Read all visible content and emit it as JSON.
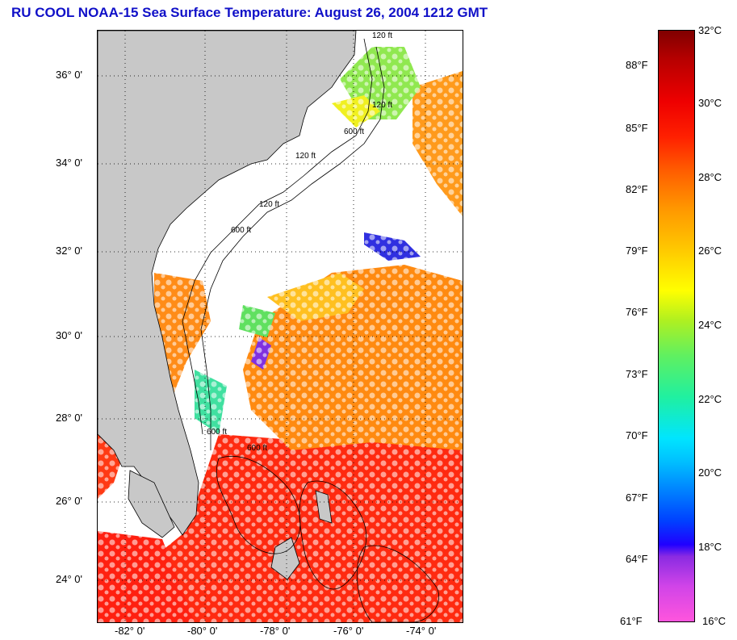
{
  "title": "RU COOL  NOAA-15  Sea Surface Temperature:  August 26, 2004 1212 GMT",
  "map": {
    "lat_labels": [
      "36° 0'",
      "34° 0'",
      "32° 0'",
      "30° 0'",
      "28° 0'",
      "26° 0'",
      "24° 0'"
    ],
    "lon_labels": [
      "-82° 0'",
      "-80° 0'",
      "-78° 0'",
      "-76° 0'",
      "-74° 0'"
    ],
    "isobath_labels": [
      "120 ft",
      "120 ft",
      "600 ft",
      "120 ft",
      "120 ft",
      "600 ft",
      "600 ft",
      "600 ft"
    ],
    "colors": {
      "land": "#c8c8c8",
      "cloud": "#ffffff",
      "contour": "#000000"
    }
  },
  "colorbar": {
    "fahrenheit_labels": [
      "88°F",
      "85°F",
      "82°F",
      "79°F",
      "76°F",
      "73°F",
      "70°F",
      "67°F",
      "64°F",
      "61°F"
    ],
    "celsius_labels": [
      "32°C",
      "30°C",
      "28°C",
      "26°C",
      "24°C",
      "22°C",
      "20°C",
      "18°C",
      "16°C"
    ]
  }
}
